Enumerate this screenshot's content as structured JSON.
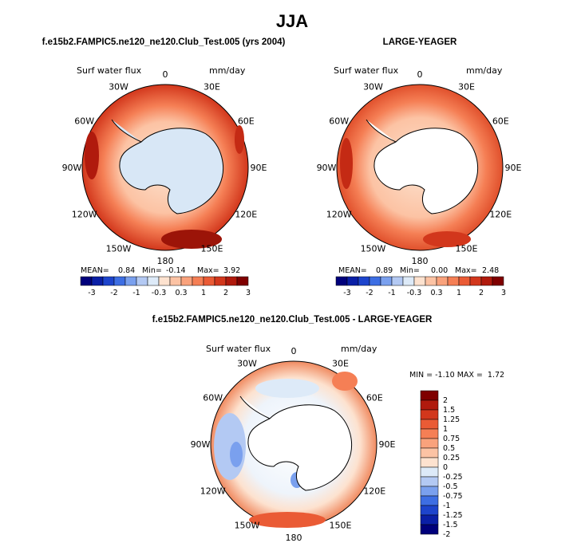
{
  "chart_data": {
    "type": "polar_map",
    "season": "JJA",
    "bar_ticks": [
      "-3",
      "-2",
      "-1",
      "-0.3",
      "0.3",
      "1",
      "2",
      "3"
    ],
    "bar_colors": [
      "#00007b",
      "#0a1fa6",
      "#1d44cc",
      "#3d6ee3",
      "#7aa0ee",
      "#b3c9f3",
      "#ddeaf8",
      "#fde2cf",
      "#fcc3a4",
      "#f9a27c",
      "#f57f55",
      "#ea5b35",
      "#d2371c",
      "#b01a0d",
      "#7f0000"
    ],
    "diff_levels": [
      "2",
      "1.5",
      "1.25",
      "1",
      "0.75",
      "0.5",
      "0.25",
      "0",
      "-0.25",
      "-0.5",
      "-0.75",
      "-1",
      "-1.25",
      "-1.5",
      "-2"
    ],
    "diff_colors": [
      "#7f0000",
      "#b01a0d",
      "#d2371c",
      "#ea5b35",
      "#f57f55",
      "#f9a27c",
      "#fcc3a4",
      "#fde2cf",
      "#ddeaf8",
      "#b3c9f3",
      "#7aa0ee",
      "#3d6ee3",
      "#1d44cc",
      "#0a1fa6",
      "#00007b"
    ],
    "longitude_labels": [
      "0",
      "30E",
      "60E",
      "90E",
      "120E",
      "150E",
      "180",
      "150W",
      "120W",
      "90W",
      "60W",
      "30W"
    ],
    "panels": [
      {
        "title": "f.e15b2.FAMPIC5.ne120_ne120.Club_Test.005 (yrs 2004)",
        "variable": "Surf water flux",
        "units": "mm/day",
        "mean_label": "MEAN=",
        "mean": "0.84",
        "min_label": "Min=",
        "min": "-0.14",
        "max_label": "Max=",
        "max": "3.92",
        "land_fill": "#d8e7f6"
      },
      {
        "title": "LARGE-YEAGER",
        "variable": "Surf water flux",
        "units": "mm/day",
        "mean_label": "MEAN=",
        "mean": "0.89",
        "min_label": "Min=",
        "min": "0.00",
        "max_label": "Max=",
        "max": "2.48",
        "land_fill": "#ffffff"
      },
      {
        "title": "f.e15b2.FAMPIC5.ne120_ne120.Club_Test.005 - LARGE-YEAGER",
        "variable": "Surf water flux",
        "units": "mm/day",
        "minmax": "MIN = -1.10 MAX =  1.72",
        "land_fill": "#ffffff"
      }
    ]
  }
}
